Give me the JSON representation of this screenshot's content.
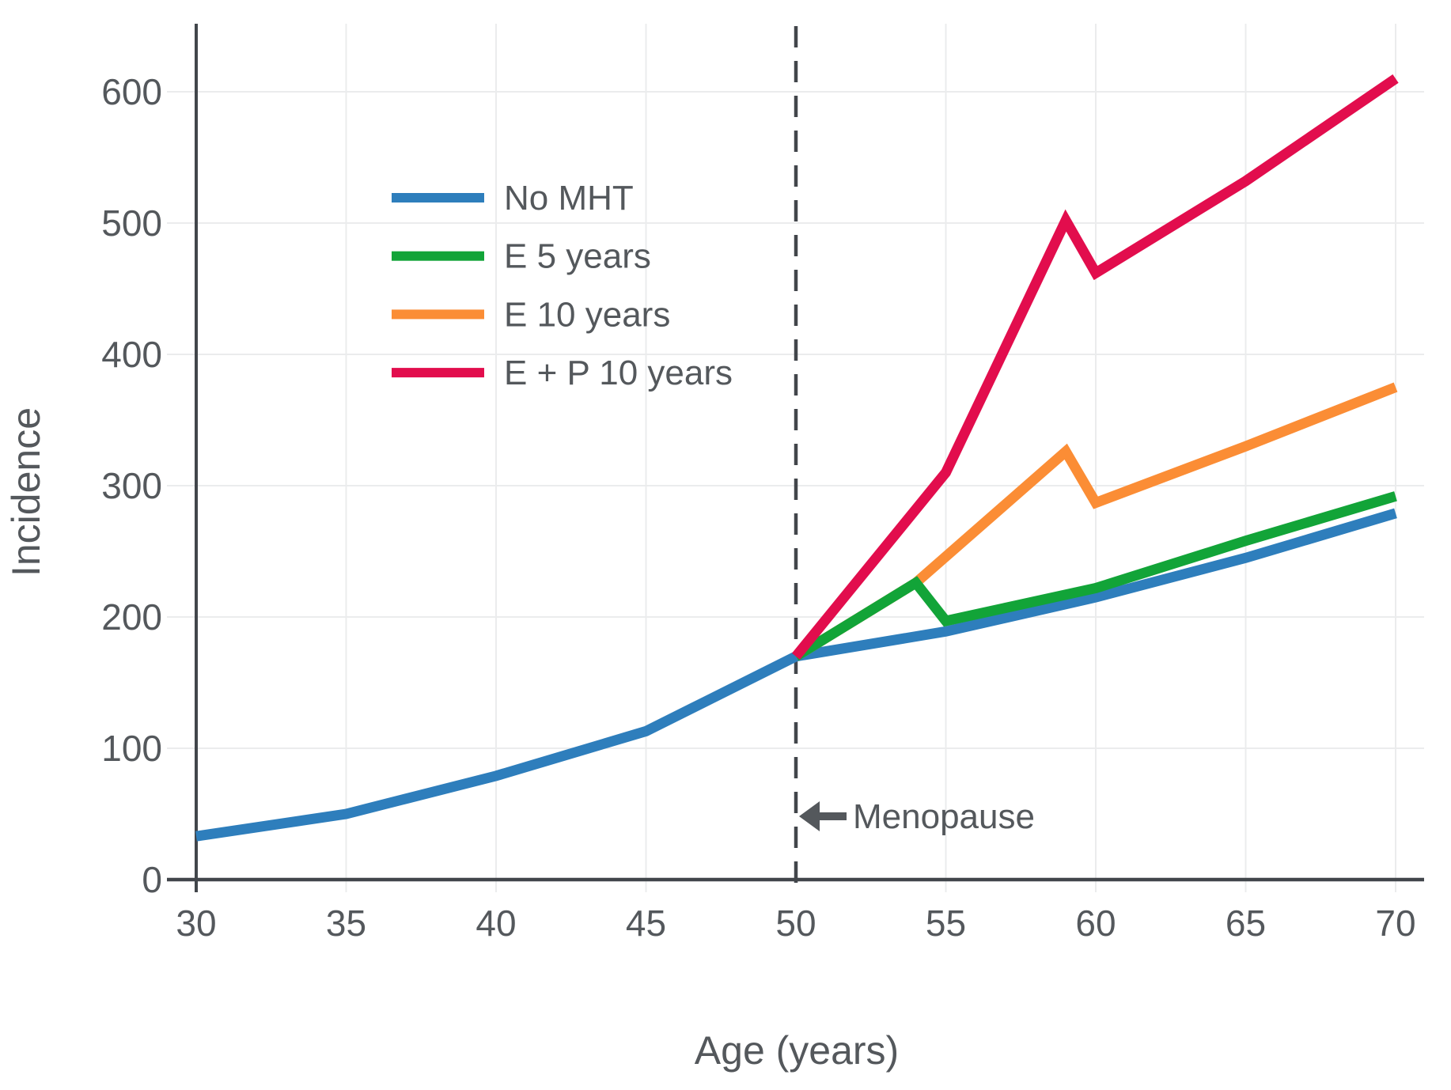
{
  "chart_data": {
    "type": "line",
    "title": "",
    "xlabel": "Age (years)",
    "ylabel": "Incidence",
    "x_ticks": [
      30,
      35,
      40,
      45,
      50,
      55,
      60,
      65,
      70
    ],
    "y_ticks": [
      0,
      100,
      200,
      300,
      400,
      500,
      600
    ],
    "xlim": [
      30,
      71
    ],
    "ylim": [
      0,
      650
    ],
    "grid": true,
    "legend_position": "upper-left-inside",
    "menopause_line_x": 50,
    "annotation": {
      "text": "Menopause",
      "arrow_direction": "left",
      "at_age": 50
    },
    "series": [
      {
        "name": "No MHT",
        "color": "#2e7ebc",
        "points": [
          [
            30,
            33
          ],
          [
            35,
            50
          ],
          [
            40,
            79
          ],
          [
            45,
            113
          ],
          [
            50,
            170
          ],
          [
            55,
            189
          ],
          [
            60,
            215
          ],
          [
            65,
            245
          ],
          [
            70,
            279
          ]
        ]
      },
      {
        "name": "E 5 years",
        "color": "#12a438",
        "points": [
          [
            50,
            170
          ],
          [
            54,
            226
          ],
          [
            55,
            197
          ],
          [
            60,
            222
          ],
          [
            65,
            258
          ],
          [
            70,
            292
          ]
        ]
      },
      {
        "name": "E 10 years",
        "color": "#fb8d35",
        "points": [
          [
            50,
            170
          ],
          [
            54,
            226
          ],
          [
            59,
            326
          ],
          [
            60,
            287
          ],
          [
            65,
            330
          ],
          [
            70,
            375
          ]
        ]
      },
      {
        "name": "E + P 10 years",
        "color": "#e20d4d",
        "points": [
          [
            50,
            170
          ],
          [
            55,
            310
          ],
          [
            59,
            502
          ],
          [
            60,
            462
          ],
          [
            65,
            532
          ],
          [
            70,
            610
          ]
        ]
      }
    ],
    "colors": {
      "axis": "#42464b",
      "grid": "#ebeced",
      "text": "#54585c",
      "annotation": "#54585c",
      "background": "#ffffff"
    }
  }
}
